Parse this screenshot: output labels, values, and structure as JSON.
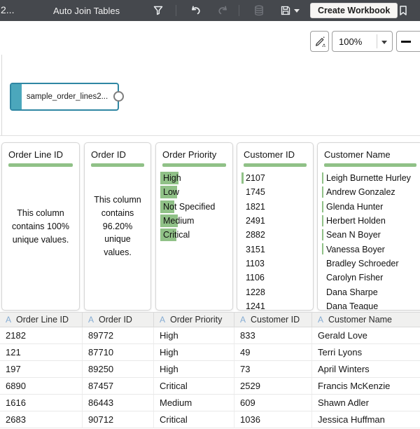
{
  "topbar": {
    "dataset_name_truncated": "2...",
    "title": "Auto Join Tables",
    "create_workbook_label": "Create Workbook"
  },
  "canvas_toolbar": {
    "zoom_level": "100%"
  },
  "diagram": {
    "node_label": "sample_order_lines2..."
  },
  "profile_cards": [
    {
      "title": "Order Line ID",
      "summary": "This column contains 100% unique values."
    },
    {
      "title": "Order ID",
      "summary": "This column contains 96.20% unique values."
    },
    {
      "title": "Order Priority",
      "values": [
        {
          "label": "High",
          "bar": 26
        },
        {
          "label": "Low",
          "bar": 24
        },
        {
          "label": "Not Specified",
          "bar": 20
        },
        {
          "label": "Medium",
          "bar": 25
        },
        {
          "label": "Critical",
          "bar": 23
        }
      ]
    },
    {
      "title": "Customer ID",
      "values": [
        {
          "label": "2107",
          "bar": 3
        },
        {
          "label": "1745",
          "bar": 0
        },
        {
          "label": "1821",
          "bar": 0
        },
        {
          "label": "2491",
          "bar": 0
        },
        {
          "label": "2882",
          "bar": 0
        },
        {
          "label": "3151",
          "bar": 0
        },
        {
          "label": "1103",
          "bar": 0
        },
        {
          "label": "1106",
          "bar": 0
        },
        {
          "label": "1228",
          "bar": 0
        },
        {
          "label": "1241",
          "bar": 0
        }
      ]
    },
    {
      "title": "Customer Name",
      "values": [
        {
          "label": "Leigh Burnette Hurley",
          "bar": 2
        },
        {
          "label": "Andrew Gonzalez",
          "bar": 2
        },
        {
          "label": "Glenda Hunter",
          "bar": 2
        },
        {
          "label": "Herbert Holden",
          "bar": 2
        },
        {
          "label": "Sean N Boyer",
          "bar": 2
        },
        {
          "label": "Vanessa Boyer",
          "bar": 2
        },
        {
          "label": "Bradley Schroeder",
          "bar": 0
        },
        {
          "label": "Carolyn Fisher",
          "bar": 0
        },
        {
          "label": "Dana Sharpe",
          "bar": 0
        },
        {
          "label": "Dana Teague",
          "bar": 0
        }
      ]
    }
  ],
  "table": {
    "columns": [
      {
        "type_letter": "A",
        "name": "Order Line ID"
      },
      {
        "type_letter": "A",
        "name": "Order ID"
      },
      {
        "type_letter": "A",
        "name": "Order Priority"
      },
      {
        "type_letter": "A",
        "name": "Customer ID"
      },
      {
        "type_letter": "A",
        "name": "Customer Name"
      }
    ],
    "rows": [
      [
        "2182",
        "89772",
        "High",
        "833",
        "Gerald Love"
      ],
      [
        "121",
        "87710",
        "High",
        "49",
        "Terri Lyons"
      ],
      [
        "197",
        "89250",
        "High",
        "73",
        "April Winters"
      ],
      [
        "6890",
        "87457",
        "Critical",
        "2529",
        "Francis McKenzie"
      ],
      [
        "1616",
        "86443",
        "Medium",
        "609",
        "Shawn Adler"
      ],
      [
        "2683",
        "90712",
        "Critical",
        "1036",
        "Jessica Huffman"
      ]
    ]
  },
  "colors": {
    "topbar_bg": "#45484d",
    "accent_green": "#90c187",
    "node_accent": "#4ba7bc",
    "node_border": "#2f87a3",
    "type_letter_blue": "#84abd3"
  }
}
